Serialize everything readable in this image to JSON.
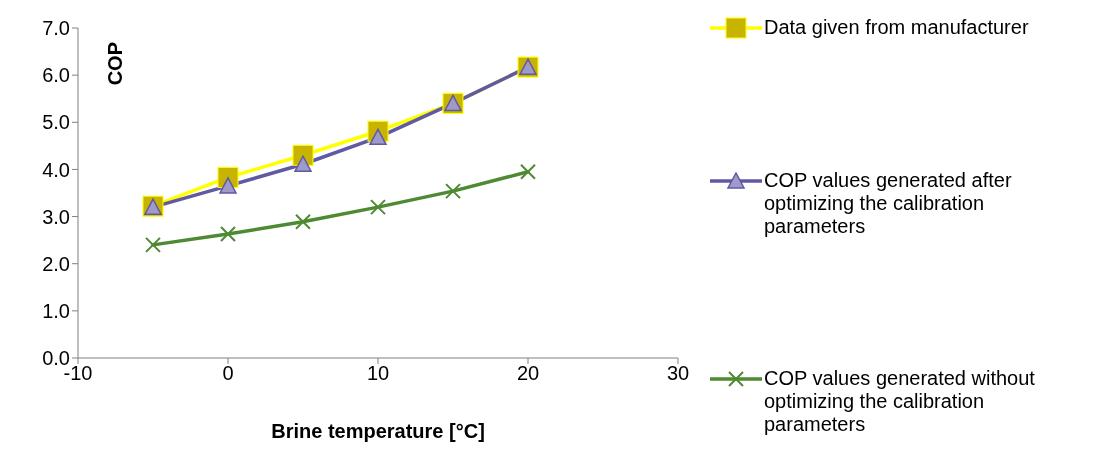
{
  "chart_data": {
    "type": "line",
    "xlabel": "Brine temperature [°C]",
    "ylabel": "COP",
    "x": [
      -5,
      0,
      5,
      10,
      15,
      20
    ],
    "series": [
      {
        "name": "Data given from manufacturer",
        "color": "#ffff00",
        "marker": "square",
        "values": [
          3.22,
          3.83,
          4.3,
          4.81,
          5.4,
          6.17
        ]
      },
      {
        "name": "COP values generated after optimizing the calibration parameters",
        "color": "#5f5aa2",
        "marker": "triangle",
        "values": [
          3.2,
          3.65,
          4.11,
          4.68,
          5.4,
          6.17
        ]
      },
      {
        "name": "COP values generated without optimizing the calibration parameters",
        "color": "#4e8a32",
        "marker": "cross",
        "values": [
          2.4,
          2.63,
          2.89,
          3.2,
          3.54,
          3.95
        ]
      }
    ],
    "xlim": [
      -10,
      30
    ],
    "xticks": [
      -10,
      0,
      10,
      20,
      30
    ],
    "ylim": [
      0,
      7
    ],
    "yticks": [
      {
        "value": 0,
        "label": "0.0"
      },
      {
        "value": 1,
        "label": "1.0"
      },
      {
        "value": 2,
        "label": "2.0"
      },
      {
        "value": 3,
        "label": "3.0"
      },
      {
        "value": 4,
        "label": "4.0"
      },
      {
        "value": 5,
        "label": "5.0"
      },
      {
        "value": 6,
        "label": "6.0"
      },
      {
        "value": 7,
        "label": "7.0"
      }
    ],
    "grid": false,
    "legend": "right"
  }
}
